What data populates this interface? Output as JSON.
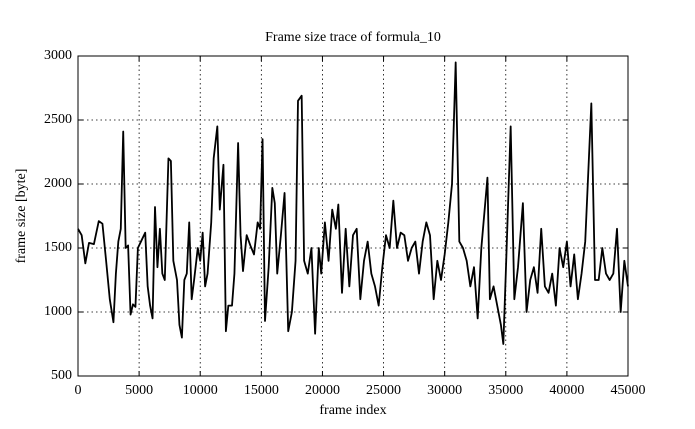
{
  "chart_data": {
    "type": "line",
    "title": "Frame size trace of formula_10",
    "x_label": "frame index",
    "y_label": "frame size [byte]",
    "xlim": [
      0,
      45000
    ],
    "xticks": [
      0,
      5000,
      10000,
      15000,
      20000,
      25000,
      30000,
      35000,
      40000,
      45000
    ],
    "ylim": [
      500,
      3000
    ],
    "yticks": [
      500,
      1000,
      1500,
      2000,
      2500,
      3000
    ],
    "grid": true,
    "series": [
      {
        "color": "#000000",
        "x": [
          0,
          300,
          600,
          900,
          1300,
          1700,
          2000,
          2300,
          2600,
          2900,
          3100,
          3300,
          3500,
          3700,
          3900,
          4100,
          4300,
          4500,
          4700,
          4900,
          5200,
          5500,
          5700,
          5900,
          6100,
          6300,
          6500,
          6700,
          6900,
          7100,
          7400,
          7600,
          7800,
          8100,
          8300,
          8500,
          8700,
          8900,
          9100,
          9300,
          9500,
          9800,
          10000,
          10200,
          10400,
          10600,
          10900,
          11100,
          11400,
          11600,
          11900,
          12100,
          12300,
          12600,
          12800,
          13100,
          13300,
          13500,
          13800,
          14100,
          14400,
          14700,
          14900,
          15100,
          15300,
          15600,
          15900,
          16100,
          16300,
          16600,
          16900,
          17200,
          17500,
          17800,
          18000,
          18300,
          18500,
          18800,
          19100,
          19400,
          19700,
          19900,
          20200,
          20500,
          20800,
          21100,
          21300,
          21600,
          21900,
          22200,
          22500,
          22800,
          23100,
          23400,
          23700,
          24000,
          24300,
          24600,
          24900,
          25200,
          25500,
          25800,
          26100,
          26400,
          26700,
          27000,
          27300,
          27600,
          27900,
          28200,
          28500,
          28800,
          29100,
          29400,
          29700,
          30000,
          30300,
          30600,
          30900,
          31200,
          31500,
          31800,
          32100,
          32400,
          32700,
          33000,
          33500,
          33700,
          34000,
          34300,
          34600,
          34800,
          35000,
          35400,
          35700,
          36000,
          36400,
          36700,
          37000,
          37300,
          37600,
          37900,
          38200,
          38500,
          38800,
          39100,
          39400,
          39700,
          40000,
          40300,
          40600,
          40900,
          41200,
          41500,
          42000,
          42300,
          42600,
          42900,
          43200,
          43500,
          43800,
          44100,
          44400,
          44700,
          45000
        ],
        "values": [
          1650,
          1600,
          1380,
          1540,
          1530,
          1710,
          1690,
          1400,
          1100,
          920,
          1300,
          1550,
          1650,
          2410,
          1500,
          1520,
          980,
          1060,
          1040,
          1500,
          1560,
          1620,
          1200,
          1050,
          950,
          1820,
          1350,
          1650,
          1300,
          1250,
          2200,
          2180,
          1400,
          1250,
          900,
          800,
          1250,
          1300,
          1700,
          1100,
          1250,
          1500,
          1400,
          1620,
          1200,
          1300,
          1700,
          2200,
          2450,
          1800,
          2150,
          850,
          1050,
          1050,
          1300,
          2320,
          1600,
          1320,
          1600,
          1520,
          1450,
          1700,
          1650,
          2350,
          930,
          1350,
          1970,
          1850,
          1300,
          1600,
          1930,
          850,
          1000,
          1400,
          2650,
          2690,
          1400,
          1300,
          1500,
          830,
          1500,
          1300,
          1700,
          1400,
          1800,
          1650,
          1840,
          1150,
          1650,
          1200,
          1600,
          1650,
          1100,
          1400,
          1550,
          1300,
          1200,
          1050,
          1350,
          1600,
          1500,
          1870,
          1500,
          1620,
          1600,
          1400,
          1500,
          1550,
          1300,
          1550,
          1700,
          1600,
          1100,
          1400,
          1250,
          1450,
          1700,
          2000,
          2950,
          1550,
          1500,
          1400,
          1200,
          1350,
          950,
          1500,
          2050,
          1100,
          1200,
          1050,
          900,
          750,
          1300,
          2450,
          1100,
          1350,
          1850,
          1000,
          1250,
          1350,
          1150,
          1650,
          1200,
          1150,
          1300,
          1050,
          1500,
          1350,
          1550,
          1200,
          1450,
          1100,
          1300,
          1550,
          2630,
          1250,
          1250,
          1500,
          1300,
          1250,
          1300,
          1650,
          1000,
          1400,
          1200
        ]
      }
    ]
  }
}
